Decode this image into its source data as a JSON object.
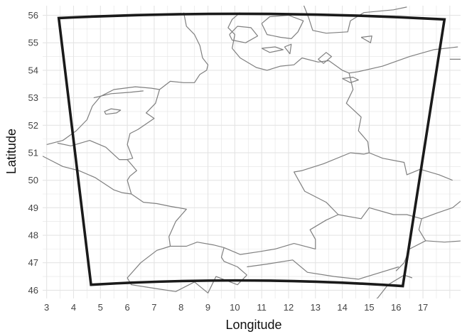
{
  "chart_data": {
    "type": "map",
    "xlabel": "Longitude",
    "ylabel": "Latitude",
    "x_ticks": [
      3,
      4,
      5,
      6,
      7,
      8,
      9,
      10,
      11,
      12,
      13,
      14,
      15,
      16,
      17
    ],
    "y_ticks": [
      46,
      47,
      48,
      49,
      50,
      51,
      52,
      53,
      54,
      55,
      56
    ],
    "xlim": [
      2.85,
      18.4
    ],
    "ylim": [
      45.7,
      56.35
    ],
    "grid": true,
    "minor_grid_step": 0.5,
    "domain_box": {
      "corners": [
        {
          "name": "north-west",
          "lon": 3.45,
          "lat": 55.9
        },
        {
          "name": "north-east",
          "lon": 17.8,
          "lat": 55.85
        },
        {
          "name": "south-east",
          "lon": 16.25,
          "lat": 46.15
        },
        {
          "name": "south-west",
          "lon": 4.65,
          "lat": 46.2
        }
      ],
      "edge_bow_lat": 0.18
    },
    "colors": {
      "grid": "#e4e4e4",
      "boundary": "#7f7f7f",
      "box": "#1a1a1a",
      "background": "#ffffff"
    },
    "boundaries": [
      {
        "name": "north-sea-coast-nl-de",
        "coords": [
          [
            3.0,
            51.3
          ],
          [
            3.6,
            51.45
          ],
          [
            4.1,
            51.8
          ],
          [
            4.5,
            52.2
          ],
          [
            4.7,
            52.7
          ],
          [
            5.0,
            53.05
          ],
          [
            5.5,
            53.3
          ],
          [
            6.3,
            53.4
          ],
          [
            6.9,
            53.35
          ],
          [
            7.2,
            53.3
          ],
          [
            7.6,
            53.6
          ],
          [
            8.1,
            53.55
          ],
          [
            8.5,
            53.55
          ],
          [
            8.7,
            53.85
          ],
          [
            8.95,
            54.0
          ],
          [
            9.0,
            54.2
          ],
          [
            8.8,
            54.45
          ],
          [
            8.7,
            54.9
          ],
          [
            8.5,
            55.3
          ],
          [
            8.2,
            55.6
          ],
          [
            8.1,
            56.1
          ]
        ]
      },
      {
        "name": "wadden-islands-line",
        "coords": [
          [
            4.75,
            53.0
          ],
          [
            5.4,
            53.15
          ],
          [
            6.1,
            53.2
          ],
          [
            6.6,
            53.25
          ]
        ]
      },
      {
        "name": "ijsselmeer-inner",
        "coords": [
          [
            5.2,
            52.4
          ],
          [
            5.6,
            52.45
          ],
          [
            5.75,
            52.55
          ],
          [
            5.4,
            52.6
          ],
          [
            5.15,
            52.5
          ],
          [
            5.2,
            52.4
          ]
        ]
      },
      {
        "name": "de-nl-border",
        "coords": [
          [
            7.2,
            53.3
          ],
          [
            7.05,
            52.8
          ],
          [
            6.7,
            52.45
          ],
          [
            7.0,
            52.25
          ],
          [
            6.4,
            51.85
          ],
          [
            6.1,
            51.7
          ],
          [
            6.0,
            51.3
          ],
          [
            6.2,
            50.8
          ],
          [
            6.0,
            50.75
          ]
        ]
      },
      {
        "name": "nl-be-border",
        "coords": [
          [
            6.0,
            50.75
          ],
          [
            5.7,
            50.75
          ],
          [
            5.2,
            51.2
          ],
          [
            4.6,
            51.45
          ],
          [
            3.9,
            51.25
          ],
          [
            3.4,
            51.35
          ]
        ]
      },
      {
        "name": "be-fr-border",
        "coords": [
          [
            2.5,
            51.05
          ],
          [
            3.1,
            50.75
          ],
          [
            3.6,
            50.5
          ],
          [
            4.2,
            50.35
          ],
          [
            4.8,
            50.1
          ],
          [
            5.5,
            49.65
          ],
          [
            5.8,
            49.55
          ]
        ]
      },
      {
        "name": "de-be-lux-border",
        "coords": [
          [
            6.0,
            50.75
          ],
          [
            6.35,
            50.35
          ],
          [
            6.1,
            50.15
          ],
          [
            6.0,
            50.0
          ],
          [
            6.15,
            49.5
          ]
        ]
      },
      {
        "name": "lux-fr-border",
        "coords": [
          [
            5.8,
            49.55
          ],
          [
            6.15,
            49.5
          ]
        ]
      },
      {
        "name": "de-fr-border",
        "coords": [
          [
            6.15,
            49.5
          ],
          [
            6.6,
            49.2
          ],
          [
            7.1,
            49.15
          ],
          [
            7.6,
            49.05
          ],
          [
            8.2,
            48.95
          ],
          [
            7.8,
            48.5
          ],
          [
            7.55,
            47.95
          ],
          [
            7.6,
            47.6
          ]
        ]
      },
      {
        "name": "fr-ch-border",
        "coords": [
          [
            7.6,
            47.6
          ],
          [
            7.1,
            47.45
          ],
          [
            6.5,
            47.0
          ],
          [
            6.0,
            46.45
          ],
          [
            6.15,
            46.2
          ],
          [
            6.8,
            46.1
          ]
        ]
      },
      {
        "name": "de-ch-border",
        "coords": [
          [
            7.6,
            47.6
          ],
          [
            8.2,
            47.6
          ],
          [
            8.6,
            47.75
          ],
          [
            9.2,
            47.65
          ],
          [
            9.6,
            47.55
          ]
        ]
      },
      {
        "name": "ch-it-border",
        "coords": [
          [
            6.8,
            46.1
          ],
          [
            7.8,
            45.95
          ],
          [
            8.5,
            46.3
          ],
          [
            9.0,
            45.9
          ],
          [
            9.3,
            46.5
          ],
          [
            10.1,
            46.2
          ],
          [
            10.45,
            46.55
          ]
        ]
      },
      {
        "name": "at-ch-li-border",
        "coords": [
          [
            9.6,
            47.55
          ],
          [
            9.5,
            47.2
          ],
          [
            9.6,
            47.05
          ],
          [
            10.1,
            46.85
          ],
          [
            10.45,
            46.55
          ]
        ]
      },
      {
        "name": "de-at-border",
        "coords": [
          [
            9.6,
            47.55
          ],
          [
            10.2,
            47.3
          ],
          [
            10.9,
            47.4
          ],
          [
            11.5,
            47.5
          ],
          [
            12.2,
            47.7
          ],
          [
            13.0,
            47.5
          ],
          [
            13.0,
            47.85
          ],
          [
            12.8,
            48.2
          ],
          [
            13.4,
            48.55
          ],
          [
            13.85,
            48.75
          ]
        ]
      },
      {
        "name": "at-it-slo-border",
        "coords": [
          [
            10.45,
            46.85
          ],
          [
            11.2,
            46.95
          ],
          [
            12.15,
            47.1
          ],
          [
            12.7,
            46.65
          ],
          [
            13.7,
            46.5
          ],
          [
            14.6,
            46.4
          ],
          [
            15.6,
            46.7
          ],
          [
            16.1,
            46.85
          ]
        ]
      },
      {
        "name": "de-cz-border",
        "coords": [
          [
            13.85,
            48.75
          ],
          [
            13.4,
            49.2
          ],
          [
            12.6,
            49.6
          ],
          [
            12.2,
            50.3
          ],
          [
            12.5,
            50.35
          ],
          [
            13.3,
            50.6
          ],
          [
            14.3,
            51.0
          ],
          [
            14.8,
            50.95
          ],
          [
            15.0,
            51.0
          ]
        ]
      },
      {
        "name": "cz-at-border",
        "coords": [
          [
            13.85,
            48.75
          ],
          [
            14.7,
            48.6
          ],
          [
            15.0,
            49.0
          ],
          [
            15.9,
            48.75
          ],
          [
            16.4,
            48.75
          ],
          [
            16.95,
            48.6
          ]
        ]
      },
      {
        "name": "de-pl-border",
        "coords": [
          [
            14.25,
            53.9
          ],
          [
            14.4,
            53.3
          ],
          [
            14.15,
            52.8
          ],
          [
            14.7,
            52.3
          ],
          [
            14.6,
            51.8
          ],
          [
            14.95,
            51.4
          ],
          [
            15.0,
            51.0
          ]
        ]
      },
      {
        "name": "cz-pl-border",
        "coords": [
          [
            15.0,
            51.0
          ],
          [
            15.5,
            50.8
          ],
          [
            16.3,
            50.65
          ],
          [
            16.4,
            50.2
          ],
          [
            16.9,
            50.4
          ],
          [
            17.6,
            50.2
          ],
          [
            18.1,
            50.0
          ]
        ]
      },
      {
        "name": "at-sk-hu-border",
        "coords": [
          [
            16.95,
            48.6
          ],
          [
            16.85,
            48.2
          ],
          [
            17.1,
            47.8
          ],
          [
            16.5,
            47.5
          ],
          [
            16.3,
            47.0
          ],
          [
            16.0,
            46.7
          ]
        ]
      },
      {
        "name": "sk-cz-border",
        "coords": [
          [
            16.95,
            48.6
          ],
          [
            17.5,
            48.8
          ],
          [
            18.1,
            49.0
          ],
          [
            18.6,
            49.4
          ]
        ]
      },
      {
        "name": "hu-sk-border",
        "coords": [
          [
            17.1,
            47.8
          ],
          [
            17.8,
            47.75
          ],
          [
            18.5,
            47.8
          ]
        ]
      },
      {
        "name": "hr-slo-border",
        "coords": [
          [
            13.7,
            45.5
          ],
          [
            14.6,
            45.5
          ],
          [
            15.3,
            45.7
          ],
          [
            15.7,
            46.2
          ],
          [
            16.3,
            46.55
          ],
          [
            16.6,
            46.45
          ]
        ]
      },
      {
        "name": "baltic-coast-de-pl",
        "coords": [
          [
            9.9,
            54.8
          ],
          [
            10.2,
            54.45
          ],
          [
            10.8,
            54.1
          ],
          [
            11.2,
            54.0
          ],
          [
            11.7,
            54.15
          ],
          [
            12.2,
            54.2
          ],
          [
            12.5,
            54.45
          ],
          [
            13.1,
            54.3
          ],
          [
            13.5,
            54.35
          ],
          [
            14.0,
            54.0
          ],
          [
            14.25,
            53.9
          ],
          [
            14.6,
            53.95
          ],
          [
            15.5,
            54.15
          ],
          [
            16.5,
            54.5
          ],
          [
            17.4,
            54.75
          ],
          [
            18.3,
            54.85
          ]
        ]
      },
      {
        "name": "oder-lagoon",
        "coords": [
          [
            14.0,
            53.7
          ],
          [
            14.4,
            53.75
          ],
          [
            14.6,
            53.65
          ],
          [
            14.3,
            53.55
          ],
          [
            14.0,
            53.7
          ]
        ]
      },
      {
        "name": "jutland-east-coast",
        "coords": [
          [
            9.9,
            54.8
          ],
          [
            10.0,
            55.3
          ],
          [
            9.75,
            55.55
          ],
          [
            9.9,
            55.85
          ],
          [
            10.2,
            56.1
          ]
        ]
      },
      {
        "name": "funen",
        "coords": [
          [
            9.8,
            55.3
          ],
          [
            10.1,
            55.6
          ],
          [
            10.6,
            55.55
          ],
          [
            10.85,
            55.25
          ],
          [
            10.4,
            55.0
          ],
          [
            9.9,
            55.1
          ],
          [
            9.8,
            55.3
          ]
        ]
      },
      {
        "name": "zealand",
        "coords": [
          [
            11.0,
            55.7
          ],
          [
            11.3,
            55.95
          ],
          [
            12.0,
            56.0
          ],
          [
            12.55,
            55.8
          ],
          [
            12.35,
            55.4
          ],
          [
            12.1,
            55.15
          ],
          [
            11.7,
            55.2
          ],
          [
            11.2,
            55.3
          ],
          [
            11.0,
            55.7
          ]
        ]
      },
      {
        "name": "lolland",
        "coords": [
          [
            11.0,
            54.8
          ],
          [
            11.5,
            54.85
          ],
          [
            11.8,
            54.75
          ],
          [
            11.3,
            54.65
          ],
          [
            11.0,
            54.8
          ]
        ]
      },
      {
        "name": "falster",
        "coords": [
          [
            11.85,
            54.85
          ],
          [
            12.1,
            54.95
          ],
          [
            12.05,
            54.6
          ],
          [
            11.85,
            54.85
          ]
        ]
      },
      {
        "name": "bornholm",
        "coords": [
          [
            14.7,
            55.2
          ],
          [
            15.1,
            55.25
          ],
          [
            15.05,
            55.0
          ],
          [
            14.7,
            55.2
          ]
        ]
      },
      {
        "name": "rugen",
        "coords": [
          [
            13.1,
            54.4
          ],
          [
            13.4,
            54.65
          ],
          [
            13.6,
            54.5
          ],
          [
            13.3,
            54.25
          ],
          [
            13.1,
            54.4
          ]
        ]
      },
      {
        "name": "sweden-south-coast",
        "coords": [
          [
            12.55,
            56.4
          ],
          [
            12.75,
            55.9
          ],
          [
            12.9,
            55.45
          ],
          [
            13.4,
            55.35
          ],
          [
            14.2,
            55.4
          ],
          [
            14.3,
            55.8
          ],
          [
            14.8,
            56.1
          ],
          [
            15.9,
            56.2
          ],
          [
            16.4,
            56.3
          ]
        ]
      },
      {
        "name": "vistula-lagoon",
        "coords": [
          [
            18.0,
            54.4
          ],
          [
            18.5,
            54.4
          ],
          [
            18.9,
            54.3
          ],
          [
            19.4,
            54.1
          ]
        ]
      }
    ]
  }
}
